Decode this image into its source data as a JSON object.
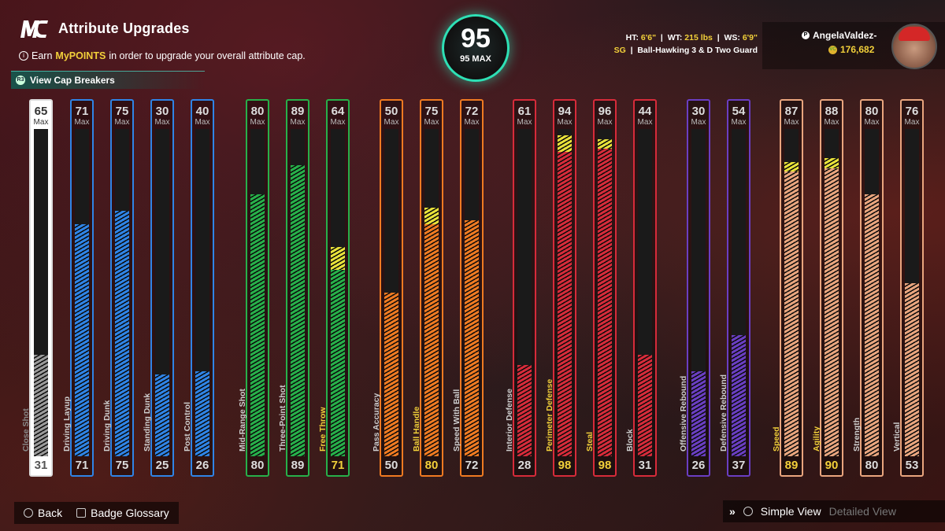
{
  "header": {
    "title": "Attribute Upgrades",
    "subtitle_pre": "Earn",
    "subtitle_highlight": "MyPOINTS",
    "subtitle_post": "in order to upgrade your overall attribute cap.",
    "cap_breakers": "View Cap Breakers"
  },
  "overall": {
    "value": "95",
    "max_label": "95 MAX"
  },
  "stats": {
    "ht_label": "HT:",
    "ht": "6'6\"",
    "wt_label": "WT:",
    "wt": "215 lbs",
    "ws_label": "WS:",
    "ws": "6'9\"",
    "position": "SG",
    "archetype": "Ball-Hawking 3 & D Two Guard"
  },
  "profile": {
    "name": "AngelaValdez-",
    "vc": "176,682"
  },
  "max_word": "Max",
  "attributes": [
    {
      "name": "Close Shot",
      "cap": "65",
      "current": "31",
      "color": "#9a9a9a",
      "fill": 0.31,
      "boost": 0,
      "first": true
    },
    {
      "name": "Driving Layup",
      "cap": "71",
      "current": "71",
      "color": "#2f84e6",
      "fill": 0.71,
      "boost": 0
    },
    {
      "name": "Driving Dunk",
      "cap": "75",
      "current": "75",
      "color": "#2f84e6",
      "fill": 0.75,
      "boost": 0
    },
    {
      "name": "Standing Dunk",
      "cap": "30",
      "current": "25",
      "color": "#2f84e6",
      "fill": 0.25,
      "boost": 0
    },
    {
      "name": "Post Control",
      "cap": "40",
      "current": "26",
      "color": "#2f84e6",
      "fill": 0.26,
      "boost": 0
    },
    {
      "name": "Mid-Range Shot",
      "cap": "80",
      "current": "80",
      "color": "#27b04a",
      "fill": 0.8,
      "boost": 0
    },
    {
      "name": "Three-Point Shot",
      "cap": "89",
      "current": "89",
      "color": "#27b04a",
      "fill": 0.89,
      "boost": 0
    },
    {
      "name": "Free Throw",
      "cap": "64",
      "current": "71",
      "color": "#27b04a",
      "fill": 0.57,
      "boost": 0.07,
      "highlight": true
    },
    {
      "name": "Pass Accuracy",
      "cap": "50",
      "current": "50",
      "color": "#ef7a22",
      "fill": 0.5,
      "boost": 0
    },
    {
      "name": "Ball Handle",
      "cap": "75",
      "current": "80",
      "color": "#ef7a22",
      "fill": 0.71,
      "boost": 0.05,
      "highlight": true
    },
    {
      "name": "Speed With Ball",
      "cap": "72",
      "current": "72",
      "color": "#ef7a22",
      "fill": 0.72,
      "boost": 0
    },
    {
      "name": "Interior Defense",
      "cap": "61",
      "current": "28",
      "color": "#d62b3a",
      "fill": 0.28,
      "boost": 0
    },
    {
      "name": "Perimeter Defense",
      "cap": "94",
      "current": "98",
      "color": "#d62b3a",
      "fill": 0.93,
      "boost": 0.05,
      "highlight": true
    },
    {
      "name": "Steal",
      "cap": "96",
      "current": "98",
      "color": "#d62b3a",
      "fill": 0.94,
      "boost": 0.03,
      "highlight": true
    },
    {
      "name": "Block",
      "cap": "44",
      "current": "31",
      "color": "#d62b3a",
      "fill": 0.31,
      "boost": 0
    },
    {
      "name": "Offensive Rebound",
      "cap": "30",
      "current": "26",
      "color": "#6a3ec2",
      "fill": 0.26,
      "boost": 0
    },
    {
      "name": "Defensive Rebound",
      "cap": "54",
      "current": "37",
      "color": "#6a3ec2",
      "fill": 0.37,
      "boost": 0
    },
    {
      "name": "Speed",
      "cap": "87",
      "current": "89",
      "color": "#e9a57e",
      "fill": 0.87,
      "boost": 0.03,
      "highlight": true
    },
    {
      "name": "Agility",
      "cap": "88",
      "current": "90",
      "color": "#e9a57e",
      "fill": 0.88,
      "boost": 0.03,
      "highlight": true
    },
    {
      "name": "Strength",
      "cap": "80",
      "current": "80",
      "color": "#e9a57e",
      "fill": 0.8,
      "boost": 0
    },
    {
      "name": "Vertical",
      "cap": "76",
      "current": "53",
      "color": "#e9a57e",
      "fill": 0.53,
      "boost": 0
    }
  ],
  "footer": {
    "back": "Back",
    "glossary": "Badge Glossary",
    "simple_view": "Simple View",
    "detailed_view": "Detailed View"
  }
}
